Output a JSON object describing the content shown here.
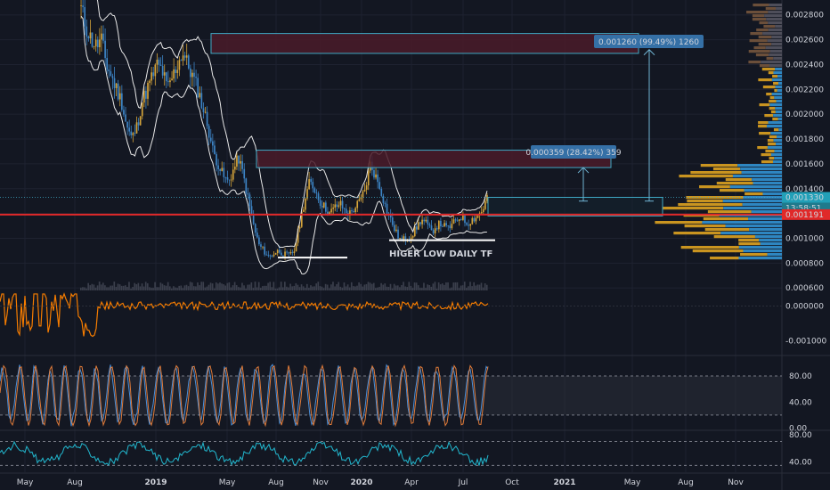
{
  "chart_data": [
    {
      "type": "line",
      "panel": "price",
      "grid": true,
      "ylim": [
        0.00058,
        0.00292
      ],
      "y_ticks": [
        "0.002800",
        "0.002600",
        "0.002400",
        "0.002200",
        "0.002000",
        "0.001800",
        "0.001600",
        "0.001400",
        "0.001200",
        "0.001000",
        "0.000800",
        "0.000600"
      ],
      "y_tick_values": [
        0.0028,
        0.0026,
        0.0024,
        0.0022,
        0.002,
        0.0018,
        0.0016,
        0.0014,
        0.0012,
        0.001,
        0.0008,
        0.0006
      ],
      "x_ticks": [
        "May",
        "Aug",
        "2019",
        "May",
        "Aug",
        "Nov",
        "2020",
        "Apr",
        "Jul",
        "Oct",
        "2021",
        "May",
        "Aug",
        "Nov"
      ],
      "series": [
        {
          "values": [
            0.00285,
            0.0027,
            0.0026,
            0.00255,
            0.0026,
            0.0024,
            0.0023,
            0.0022,
            0.0021,
            0.0019,
            0.0018,
            0.0019,
            0.0021,
            0.0022,
            0.0023,
            0.0024,
            0.00235,
            0.0022,
            0.0023,
            0.0024,
            0.0025,
            0.0024,
            0.0023,
            0.0022,
            0.00205,
            0.0019,
            0.0017,
            0.0016,
            0.0015,
            0.00145,
            0.00155,
            0.00165,
            0.0015,
            0.0013,
            0.0011,
            0.00095,
            0.0009,
            0.00085,
            0.00088,
            0.0009,
            0.00087,
            0.00086,
            0.0009,
            0.0011,
            0.0013,
            0.00145,
            0.0014,
            0.0013,
            0.00125,
            0.0012,
            0.00125,
            0.00128,
            0.00122,
            0.0012,
            0.00125,
            0.0013,
            0.0014,
            0.0016,
            0.0015,
            0.0014,
            0.00125,
            0.00115,
            0.00105,
            0.00098,
            0.001,
            0.00102,
            0.00108,
            0.00115,
            0.00112,
            0.00105,
            0.0011,
            0.00112,
            0.00108,
            0.0011,
            0.00115,
            0.00118,
            0.00112,
            0.00115,
            0.00118,
            0.00122,
            0.00133
          ]
        }
      ],
      "current_price": "0.001330",
      "countdown": "13:58:51",
      "red_line_price": "0.001191",
      "annotation_text": "HIGER LOW DAILY TF",
      "annotations": [
        {
          "price_range_label": "0.001260 (99.49%) 1260",
          "value": 0.00126,
          "percent": 99.49,
          "ticks": 1260
        },
        {
          "price_range_label": "0.000359 (28.42%) 359",
          "value": 0.000359,
          "percent": 28.42,
          "ticks": 359
        }
      ]
    },
    {
      "type": "line",
      "panel": "oscillator",
      "ylim": [
        -0.0014,
        0.0004
      ],
      "y_ticks": [
        "0.000000",
        "-0.001000"
      ],
      "y_tick_values": [
        0,
        -0.001
      ],
      "colors": {
        "line": "#f57c00"
      }
    },
    {
      "type": "line",
      "panel": "stochastic",
      "ylim": [
        -2,
        110
      ],
      "y_ticks": [
        "80.00",
        "40.00",
        "0.00"
      ],
      "y_tick_values": [
        80,
        40,
        0
      ],
      "colors": {
        "k": "#4a8fd9",
        "d": "#e07b39"
      }
    },
    {
      "type": "line",
      "panel": "rsi",
      "ylim": [
        25,
        85
      ],
      "y_ticks": [
        "80.00",
        "40.00"
      ],
      "y_tick_values": [
        80,
        40
      ],
      "colors": {
        "line": "#22b8cf"
      }
    }
  ],
  "colors": {
    "background": "#131722",
    "grid": "#1e2230",
    "up_candle": "#d5a43a",
    "down_candle": "#3d85c6",
    "red_line": "#e02929",
    "range_box": "#3fa8c4",
    "range_fill": "#4a1b29",
    "label_bg": "#3570a6",
    "price_badge": "#22a0b8",
    "red_badge": "#e02929",
    "vp_orange": "#c99420",
    "vp_blue": "#2e86c1",
    "vp_brown": "#6b4f3a"
  }
}
